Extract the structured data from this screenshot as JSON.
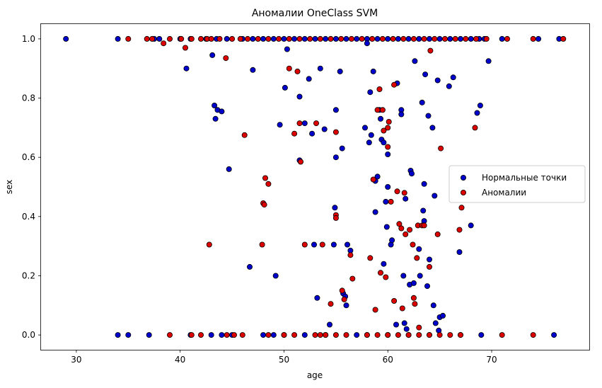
{
  "chart_data": {
    "type": "scatter",
    "title": "Аномалии OneClass SVM",
    "xlabel": "age",
    "ylabel": "sex",
    "xlim": [
      26.6,
      79.4
    ],
    "ylim": [
      -0.05,
      1.05
    ],
    "xticks": [
      30,
      40,
      50,
      60,
      70
    ],
    "yticks": [
      0.0,
      0.2,
      0.4,
      0.6,
      0.8,
      1.0
    ],
    "grid": false,
    "legend_position": "center-right",
    "series": [
      {
        "name": "Нормальные точки",
        "color": "#0000cc",
        "points": [
          [
            29,
            1.0
          ],
          [
            34,
            1.0
          ],
          [
            37.5,
            1.0
          ],
          [
            38,
            1.0
          ],
          [
            40,
            1.0
          ],
          [
            41,
            1.0
          ],
          [
            42.5,
            1.0
          ],
          [
            43.5,
            1.0
          ],
          [
            44.5,
            1.0
          ],
          [
            46,
            1.0
          ],
          [
            47,
            1.0
          ],
          [
            48,
            1.0
          ],
          [
            49,
            1.0
          ],
          [
            50,
            1.0
          ],
          [
            51,
            1.0
          ],
          [
            52,
            1.0
          ],
          [
            53,
            1.0
          ],
          [
            54,
            1.0
          ],
          [
            55,
            1.0
          ],
          [
            56,
            1.0
          ],
          [
            57,
            1.0
          ],
          [
            58,
            1.0
          ],
          [
            59,
            1.0
          ],
          [
            60,
            1.0
          ],
          [
            61,
            1.0
          ],
          [
            62,
            1.0
          ],
          [
            63,
            1.0
          ],
          [
            64,
            1.0
          ],
          [
            65,
            1.0
          ],
          [
            66,
            1.0
          ],
          [
            67,
            1.0
          ],
          [
            68,
            1.0
          ],
          [
            68.8,
            1.0
          ],
          [
            69.3,
            1.0
          ],
          [
            71,
            1.0
          ],
          [
            74.5,
            1.0
          ],
          [
            76.5,
            1.0
          ],
          [
            34,
            0.0
          ],
          [
            35,
            0.0
          ],
          [
            37,
            0.0
          ],
          [
            41,
            0.0
          ],
          [
            43,
            0.0
          ],
          [
            44,
            0.0
          ],
          [
            45,
            0.0
          ],
          [
            48,
            0.0
          ],
          [
            49,
            0.0
          ],
          [
            50,
            0.0
          ],
          [
            52,
            0.0
          ],
          [
            54,
            0.0
          ],
          [
            57,
            0.0
          ],
          [
            58,
            0.0
          ],
          [
            60,
            0.0
          ],
          [
            62,
            0.0
          ],
          [
            64,
            0.0
          ],
          [
            67,
            0.0
          ],
          [
            69,
            0.0
          ],
          [
            76,
            0.0
          ],
          [
            40.6,
            0.9
          ],
          [
            43.1,
            0.945
          ],
          [
            43.3,
            0.775
          ],
          [
            43.6,
            0.76
          ],
          [
            43.4,
            0.73
          ],
          [
            44,
            0.755
          ],
          [
            44.7,
            0.56
          ],
          [
            46.7,
            0.23
          ],
          [
            47,
            0.895
          ],
          [
            49.2,
            0.2
          ],
          [
            49.6,
            0.71
          ],
          [
            50.1,
            0.835
          ],
          [
            50.3,
            0.965
          ],
          [
            51.5,
            0.805
          ],
          [
            51.5,
            0.59
          ],
          [
            52,
            0.715
          ],
          [
            52.4,
            0.865
          ],
          [
            52.7,
            0.68
          ],
          [
            52.9,
            0.305
          ],
          [
            53.2,
            0.125
          ],
          [
            53.5,
            0.9
          ],
          [
            53.9,
            0.695
          ],
          [
            54.4,
            0.035
          ],
          [
            54.8,
            0.305
          ],
          [
            54.9,
            0.43
          ],
          [
            55,
            0.6
          ],
          [
            55,
            0.76
          ],
          [
            55.4,
            0.89
          ],
          [
            55.6,
            0.63
          ],
          [
            55.7,
            0.14
          ],
          [
            55.9,
            0.13
          ],
          [
            56,
            0.1
          ],
          [
            56.1,
            0.305
          ],
          [
            56.4,
            0.285
          ],
          [
            57.8,
            0.7
          ],
          [
            58,
            0.985
          ],
          [
            58.2,
            0.65
          ],
          [
            58.3,
            0.82
          ],
          [
            58.4,
            0.675
          ],
          [
            58.6,
            0.89
          ],
          [
            58.8,
            0.52
          ],
          [
            58.8,
            0.415
          ],
          [
            59,
            0.535
          ],
          [
            59.2,
            0.76
          ],
          [
            59.3,
            0.73
          ],
          [
            59.4,
            0.66
          ],
          [
            59.6,
            0.24
          ],
          [
            59.6,
            0.65
          ],
          [
            59.8,
            0.45
          ],
          [
            59.9,
            0.365
          ],
          [
            60,
            0.61
          ],
          [
            60,
            0.5
          ],
          [
            60.3,
            0.305
          ],
          [
            60.4,
            0.32
          ],
          [
            60.8,
            0.035
          ],
          [
            60.9,
            0.85
          ],
          [
            61.3,
            0.76
          ],
          [
            61.3,
            0.745
          ],
          [
            61.5,
            0.2
          ],
          [
            61.6,
            0.04
          ],
          [
            61.7,
            0.46
          ],
          [
            61.8,
            0.02
          ],
          [
            62.1,
            0.17
          ],
          [
            62.2,
            0.555
          ],
          [
            62.3,
            0.545
          ],
          [
            62.5,
            0.175
          ],
          [
            62.6,
            0.925
          ],
          [
            63,
            0.29
          ],
          [
            63.1,
            0.2
          ],
          [
            63.3,
            0.785
          ],
          [
            63.5,
            0.385
          ],
          [
            63.6,
            0.88
          ],
          [
            63.4,
            0.42
          ],
          [
            63.5,
            0.51
          ],
          [
            63.8,
            0.165
          ],
          [
            63.9,
            0.74
          ],
          [
            64,
            0.255
          ],
          [
            64.3,
            0.7
          ],
          [
            64.4,
            0.1
          ],
          [
            64.5,
            0.47
          ],
          [
            64.6,
            0.04
          ],
          [
            64.8,
            0.86
          ],
          [
            64.9,
            0.015
          ],
          [
            65,
            0.06
          ],
          [
            65.3,
            0.065
          ],
          [
            65.9,
            0.84
          ],
          [
            66.3,
            0.87
          ],
          [
            66.9,
            0.28
          ],
          [
            68,
            0.37
          ],
          [
            68.6,
            0.75
          ],
          [
            68.9,
            0.775
          ],
          [
            69.7,
            0.925
          ]
        ]
      },
      {
        "name": "Аномалии",
        "color": "#dd0000",
        "points": [
          [
            35,
            1.0
          ],
          [
            36.8,
            1.0
          ],
          [
            37.3,
            1.0
          ],
          [
            38.4,
            0.985
          ],
          [
            39,
            1.0
          ],
          [
            40.1,
            1.0
          ],
          [
            40.5,
            0.97
          ],
          [
            41.1,
            1.0
          ],
          [
            42,
            1.0
          ],
          [
            42.6,
            1.0
          ],
          [
            43,
            1.0
          ],
          [
            43.8,
            1.0
          ],
          [
            44.4,
            0.935
          ],
          [
            45,
            1.0
          ],
          [
            45.8,
            1.0
          ],
          [
            46.5,
            1.0
          ],
          [
            47.5,
            1.0
          ],
          [
            48.5,
            1.0
          ],
          [
            49.5,
            1.0
          ],
          [
            50.5,
            1.0
          ],
          [
            51.5,
            1.0
          ],
          [
            52.5,
            1.0
          ],
          [
            53.5,
            1.0
          ],
          [
            54.5,
            1.0
          ],
          [
            55.5,
            1.0
          ],
          [
            56.5,
            1.0
          ],
          [
            57.5,
            1.0
          ],
          [
            58.5,
            1.0
          ],
          [
            59.5,
            1.0
          ],
          [
            60.5,
            1.0
          ],
          [
            61.5,
            1.0
          ],
          [
            62.5,
            1.0
          ],
          [
            63.5,
            1.0
          ],
          [
            64.1,
            0.96
          ],
          [
            64.5,
            1.0
          ],
          [
            65.5,
            1.0
          ],
          [
            66.5,
            1.0
          ],
          [
            67.5,
            1.0
          ],
          [
            68.5,
            1.0
          ],
          [
            69.5,
            1.0
          ],
          [
            71.5,
            1.0
          ],
          [
            74,
            1.0
          ],
          [
            76.9,
            1.0
          ],
          [
            39,
            0.0
          ],
          [
            41.1,
            0.0
          ],
          [
            42,
            0.0
          ],
          [
            44.5,
            0.0
          ],
          [
            45.2,
            0.0
          ],
          [
            46,
            0.0
          ],
          [
            48.5,
            0.0
          ],
          [
            50,
            0.0
          ],
          [
            51,
            0.0
          ],
          [
            53,
            0.0
          ],
          [
            53.5,
            0.0
          ],
          [
            54,
            0.0
          ],
          [
            55,
            0.0
          ],
          [
            56,
            0.0
          ],
          [
            58,
            0.0
          ],
          [
            59,
            0.0
          ],
          [
            60,
            0.0
          ],
          [
            61,
            0.0
          ],
          [
            62,
            0.0
          ],
          [
            63,
            0.0
          ],
          [
            64,
            0.0
          ],
          [
            65,
            0.0
          ],
          [
            66,
            0.0
          ],
          [
            67,
            0.0
          ],
          [
            71,
            0.0
          ],
          [
            74,
            0.0
          ],
          [
            42.8,
            0.305
          ],
          [
            46.2,
            0.675
          ],
          [
            47.9,
            0.305
          ],
          [
            48,
            0.445
          ],
          [
            48.1,
            0.44
          ],
          [
            48.2,
            0.53
          ],
          [
            48.5,
            0.51
          ],
          [
            50.5,
            0.9
          ],
          [
            51,
            0.68
          ],
          [
            51.3,
            0.89
          ],
          [
            51.5,
            0.715
          ],
          [
            51.6,
            0.585
          ],
          [
            52,
            0.305
          ],
          [
            53.1,
            0.715
          ],
          [
            53.7,
            0.305
          ],
          [
            54.5,
            0.105
          ],
          [
            55,
            0.685
          ],
          [
            55,
            0.405
          ],
          [
            55,
            0.395
          ],
          [
            55.6,
            0.15
          ],
          [
            55.8,
            0.12
          ],
          [
            56.4,
            0.27
          ],
          [
            56.6,
            0.19
          ],
          [
            58.3,
            0.26
          ],
          [
            58.6,
            0.525
          ],
          [
            58.8,
            0.085
          ],
          [
            59,
            0.76
          ],
          [
            59.2,
            0.83
          ],
          [
            59.3,
            0.21
          ],
          [
            59.5,
            0.76
          ],
          [
            59.6,
            0.69
          ],
          [
            59.8,
            0.195
          ],
          [
            60,
            0.7
          ],
          [
            60,
            0.635
          ],
          [
            60.1,
            0.72
          ],
          [
            60.3,
            0.45
          ],
          [
            60.6,
            0.845
          ],
          [
            60.6,
            0.115
          ],
          [
            60.9,
            0.485
          ],
          [
            61.1,
            0.375
          ],
          [
            61.3,
            0.36
          ],
          [
            61.4,
            0.09
          ],
          [
            61.6,
            0.48
          ],
          [
            61.7,
            0.34
          ],
          [
            62.1,
            0.355
          ],
          [
            62.4,
            0.305
          ],
          [
            62.5,
            0.125
          ],
          [
            62.6,
            0.105
          ],
          [
            62.8,
            0.26
          ],
          [
            62.9,
            0.37
          ],
          [
            63,
            0.025
          ],
          [
            63.3,
            0.37
          ],
          [
            63.5,
            0.37
          ],
          [
            64,
            0.23
          ],
          [
            64.8,
            0.34
          ],
          [
            65.1,
            0.63
          ],
          [
            66.9,
            0.355
          ],
          [
            67.1,
            0.43
          ],
          [
            68.4,
            0.7
          ]
        ]
      }
    ]
  }
}
